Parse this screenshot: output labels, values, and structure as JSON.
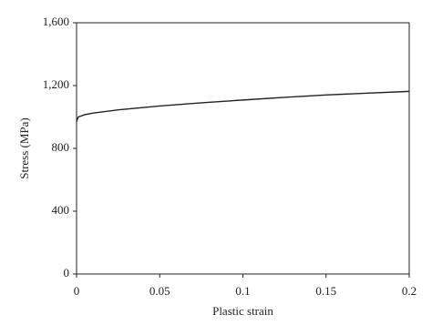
{
  "chart_data": {
    "type": "line",
    "xlabel": "Plastic strain",
    "ylabel": "Stress (MPa)",
    "x": [
      0,
      0.001,
      0.005,
      0.01,
      0.025,
      0.05,
      0.075,
      0.1,
      0.125,
      0.15,
      0.175,
      0.2
    ],
    "series": [
      {
        "color": "#222222",
        "values": [
          970,
          1000,
          1015,
          1025,
          1045,
          1070,
          1090,
          1108,
          1125,
          1140,
          1152,
          1163
        ]
      }
    ],
    "xlim": [
      0,
      0.2
    ],
    "xticks": [
      0,
      0.05,
      0.1,
      0.15,
      0.2
    ],
    "ylim": [
      0,
      1600
    ],
    "yticks": [
      0,
      400,
      800,
      {
        "value": 1200,
        "label": "1,200"
      },
      {
        "value": 1600,
        "label": "1,600"
      }
    ],
    "grid": false
  }
}
